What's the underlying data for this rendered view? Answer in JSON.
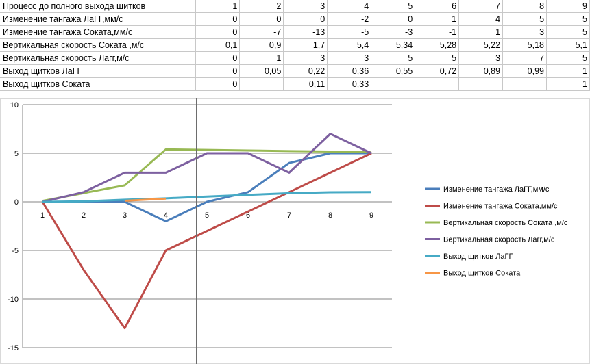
{
  "table": {
    "rows": [
      {
        "label": "Процесс до полного выхода щитков",
        "cells": [
          "1",
          "2",
          "3",
          "4",
          "5",
          "6",
          "7",
          "8",
          "9"
        ]
      },
      {
        "label": "Изменение тангажа ЛаГГ,мм/с",
        "cells": [
          "0",
          "0",
          "0",
          "-2",
          "0",
          "1",
          "4",
          "5",
          "5"
        ]
      },
      {
        "label": "Изменение тангажа Соката,мм/с",
        "cells": [
          "0",
          "-7",
          "-13",
          "-5",
          "-3",
          "-1",
          "1",
          "3",
          "5"
        ]
      },
      {
        "label": "Вертикальная скорость Соката ,м/с",
        "cells": [
          "0,1",
          "0,9",
          "1,7",
          "5,4",
          "5,34",
          "5,28",
          "5,22",
          "5,18",
          "5,1"
        ]
      },
      {
        "label": "Вертикальная скорость Лагг,м/с",
        "cells": [
          "0",
          "1",
          "3",
          "3",
          "5",
          "5",
          "3",
          "7",
          "5"
        ]
      },
      {
        "label": "Выход щитков ЛаГГ",
        "cells": [
          "0",
          "0,05",
          "0,22",
          "0,36",
          "0,55",
          "0,72",
          "0,89",
          "0,99",
          "1"
        ]
      },
      {
        "label": "Выход щитков Соката",
        "cells": [
          "0",
          "",
          "0,11",
          "0,33",
          "",
          "",
          "",
          "",
          "1"
        ]
      }
    ]
  },
  "chart_data": {
    "type": "line",
    "categories": [
      "1",
      "2",
      "3",
      "4",
      "5",
      "6",
      "7",
      "8",
      "9"
    ],
    "x": [
      1,
      2,
      3,
      4,
      5,
      6,
      7,
      8,
      9
    ],
    "ylim": [
      -15,
      10
    ],
    "yticks": [
      10,
      5,
      0,
      -5,
      -10,
      -15
    ],
    "grid": true,
    "legend_position": "right",
    "series": [
      {
        "name": "Изменение  тангажа ЛаГГ,мм/с",
        "color": "#4a7ebb",
        "values": [
          0,
          0,
          0,
          -2,
          0,
          1,
          4,
          5,
          5
        ]
      },
      {
        "name": "Изменение  тангажа Соката,мм/с",
        "color": "#be4b48",
        "values": [
          0,
          -7,
          -13,
          -5,
          -3,
          -1,
          1,
          3,
          5
        ]
      },
      {
        "name": "Вертикальная скорость Соката ,м/с",
        "color": "#98b954",
        "values": [
          0.1,
          0.9,
          1.7,
          5.4,
          5.34,
          5.28,
          5.22,
          5.18,
          5.1
        ]
      },
      {
        "name": "Вертикальная скорость Лагг,м/с",
        "color": "#7d60a0",
        "values": [
          0,
          1,
          3,
          3,
          5,
          5,
          3,
          7,
          5
        ]
      },
      {
        "name": "Выход щитков ЛаГГ",
        "color": "#46aac5",
        "values": [
          0,
          0.05,
          0.22,
          0.36,
          0.55,
          0.72,
          0.89,
          0.99,
          1
        ]
      },
      {
        "name": "Выход щитков Соката",
        "color": "#f79646",
        "values": [
          0,
          null,
          0.11,
          0.33,
          null,
          null,
          null,
          null,
          1
        ]
      }
    ]
  }
}
